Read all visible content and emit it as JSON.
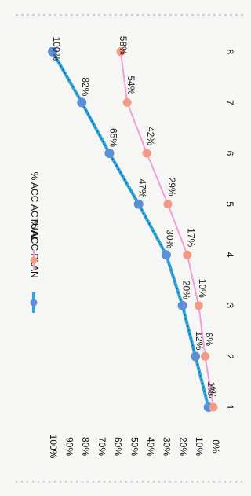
{
  "chart_data": {
    "type": "line",
    "orientation": "rotated-90-clockwise",
    "categories": [
      "1",
      "2",
      "3",
      "4",
      "5",
      "6",
      "7",
      "8"
    ],
    "series": [
      {
        "name": "% ACC PLAN",
        "color": "#2fa8df",
        "marker_color": "#5b8fd6",
        "values": [
          4,
          12,
          20,
          30,
          47,
          65,
          82,
          100
        ],
        "labels": [
          "4%",
          "12%",
          "20%",
          "30%",
          "47%",
          "65%",
          "82%",
          "100%"
        ]
      },
      {
        "name": "% ACC ACTUAL",
        "color": "#f0a0d8",
        "marker_color": "#f29a84",
        "values": [
          1,
          6,
          10,
          17,
          29,
          42,
          54,
          58
        ],
        "labels": [
          "1%",
          "6%",
          "10%",
          "17%",
          "29%",
          "42%",
          "54%",
          "58%"
        ]
      }
    ],
    "y_ticks": [
      "0%",
      "10%",
      "20%",
      "30%",
      "40%",
      "50%",
      "60%",
      "70%",
      "80%",
      "90%",
      "100%"
    ],
    "ylim": [
      0,
      100
    ],
    "grid": false,
    "legend_position": "top"
  }
}
